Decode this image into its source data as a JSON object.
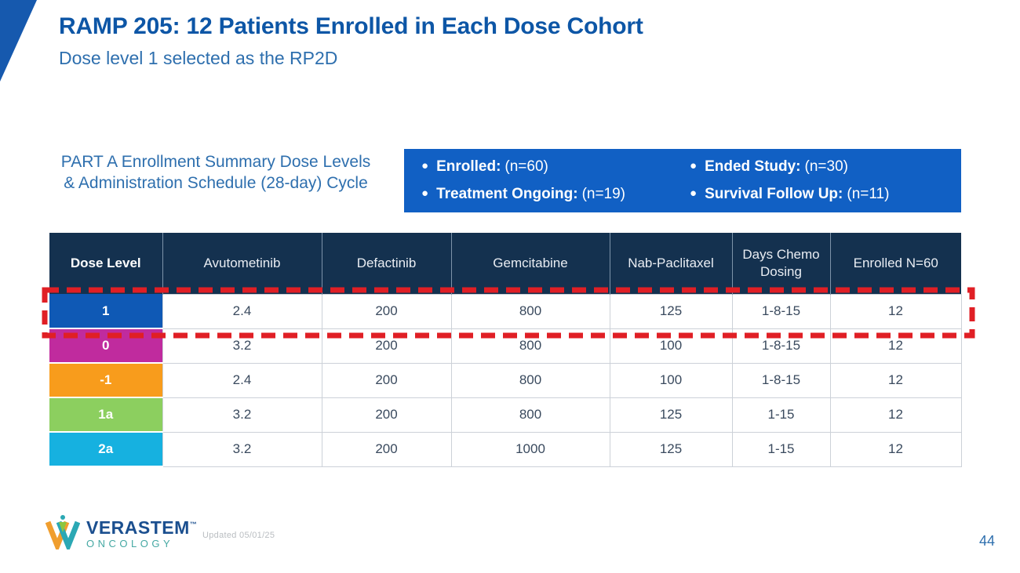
{
  "slide": {
    "title": "RAMP 205: 12 Patients Enrolled in Each Dose Cohort",
    "subtitle": "Dose level 1 selected as the RP2D",
    "summary_label": "PART A Enrollment Summary Dose Levels & Administration Schedule (28-day) Cycle",
    "updated_label": "Updated 05/01/25",
    "page_number": "44"
  },
  "status_box": {
    "bg_color": "#1160c4",
    "items": [
      {
        "label": "Enrolled:",
        "value": "(n=60)"
      },
      {
        "label": "Treatment Ongoing:",
        "value": "(n=19)"
      },
      {
        "label": "Ended Study:",
        "value": "(n=30)"
      },
      {
        "label": "Survival Follow Up:",
        "value": "(n=11)"
      }
    ]
  },
  "table": {
    "columns": [
      "Dose Level",
      "Avutometinib",
      "Defactinib",
      "Gemcitabine",
      "Nab-Paclitaxel",
      "Days Chemo Dosing",
      "Enrolled N=60"
    ],
    "rows": [
      {
        "dose_level": "1",
        "color": "#0f59b5",
        "avutometinib": "2.4",
        "defactinib": "200",
        "gemcitabine": "800",
        "nab_paclitaxel": "125",
        "days_chemo_dosing": "1-8-15",
        "enrolled": "12",
        "highlighted": true
      },
      {
        "dose_level": "0",
        "color": "#c02b9e",
        "avutometinib": "3.2",
        "defactinib": "200",
        "gemcitabine": "800",
        "nab_paclitaxel": "100",
        "days_chemo_dosing": "1-8-15",
        "enrolled": "12",
        "highlighted": false
      },
      {
        "dose_level": "-1",
        "color": "#f89c1c",
        "avutometinib": "2.4",
        "defactinib": "200",
        "gemcitabine": "800",
        "nab_paclitaxel": "100",
        "days_chemo_dosing": "1-8-15",
        "enrolled": "12",
        "highlighted": false
      },
      {
        "dose_level": "1a",
        "color": "#8ccf5f",
        "avutometinib": "3.2",
        "defactinib": "200",
        "gemcitabine": "800",
        "nab_paclitaxel": "125",
        "days_chemo_dosing": "1-15",
        "enrolled": "12",
        "highlighted": false
      },
      {
        "dose_level": "2a",
        "color": "#16b1e0",
        "avutometinib": "3.2",
        "defactinib": "200",
        "gemcitabine": "1000",
        "nab_paclitaxel": "125",
        "days_chemo_dosing": "1-15",
        "enrolled": "12",
        "highlighted": false
      }
    ],
    "highlight_color": "#e01f25"
  },
  "colors": {
    "title_blue": "#0d56a6",
    "subtitle_blue": "#2e6fae",
    "header_navy": "#14314f",
    "wedge_blue": "#1659ae"
  },
  "footer": {
    "logo_name": "VERASTEM",
    "logo_trademark": "™",
    "logo_subtext": "ONCOLOGY"
  }
}
